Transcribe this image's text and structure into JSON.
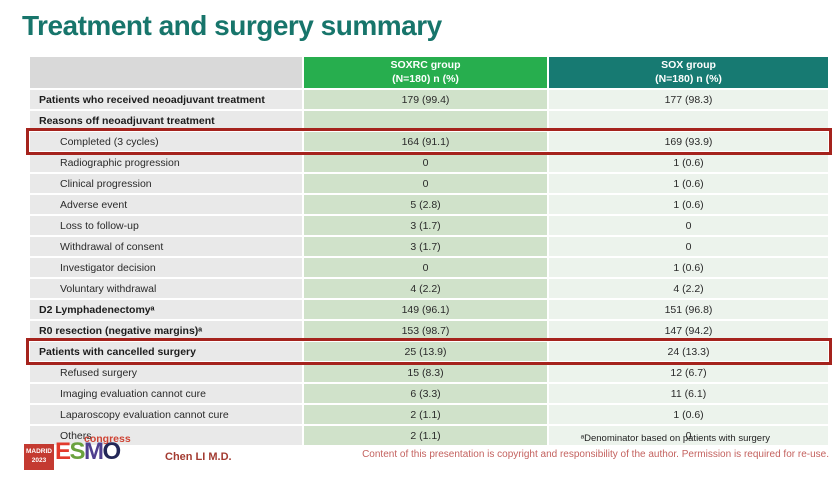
{
  "slide": {
    "title": "Treatment and surgery summary"
  },
  "colors": {
    "title_text": "#17756b",
    "header_soxrc_bg": "#27ae4e",
    "header_sox_bg": "#177a72",
    "label_column_bg": "#e9e9e9",
    "soxrc_column_bg": "#d0e2ca",
    "sox_column_bg": "#ecf3ec",
    "highlight_border": "#a5231d",
    "author_text": "#a33b31",
    "copyright_text": "#c4625f",
    "esmo_badge_bg": "#c43a31"
  },
  "table": {
    "header": {
      "soxrc_line1": "SOXRC group",
      "soxrc_line2": "(N=180)  n (%)",
      "sox_line1": "SOX group",
      "sox_line2": "(N=180)  n (%)"
    },
    "rows": [
      {
        "label": "Patients who received neoadjuvant treatment",
        "soxrc": "179 (99.4)",
        "sox": "177 (98.3)",
        "bold": true,
        "indent": false,
        "highlight": false
      },
      {
        "label": "Reasons off neoadjuvant treatment",
        "soxrc": "",
        "sox": "",
        "bold": true,
        "indent": false,
        "highlight": false
      },
      {
        "label": "Completed (3 cycles)",
        "soxrc": "164 (91.1)",
        "sox": "169 (93.9)",
        "bold": false,
        "indent": true,
        "highlight": true
      },
      {
        "label": "Radiographic progression",
        "soxrc": "0",
        "sox": "1 (0.6)",
        "bold": false,
        "indent": true,
        "highlight": false
      },
      {
        "label": "Clinical progression",
        "soxrc": "0",
        "sox": "1 (0.6)",
        "bold": false,
        "indent": true,
        "highlight": false
      },
      {
        "label": "Adverse event",
        "soxrc": "5 (2.8)",
        "sox": "1 (0.6)",
        "bold": false,
        "indent": true,
        "highlight": false
      },
      {
        "label": "Loss to follow-up",
        "soxrc": "3 (1.7)",
        "sox": "0",
        "bold": false,
        "indent": true,
        "highlight": false
      },
      {
        "label": "Withdrawal of consent",
        "soxrc": "3 (1.7)",
        "sox": "0",
        "bold": false,
        "indent": true,
        "highlight": false
      },
      {
        "label": "Investigator decision",
        "soxrc": "0",
        "sox": "1 (0.6)",
        "bold": false,
        "indent": true,
        "highlight": false
      },
      {
        "label": "Voluntary withdrawal",
        "soxrc": "4 (2.2)",
        "sox": "4 (2.2)",
        "bold": false,
        "indent": true,
        "highlight": false
      },
      {
        "label": "D2 Lymphadenectomyᵃ",
        "soxrc": "149 (96.1)",
        "sox": "151 (96.8)",
        "bold": true,
        "indent": false,
        "highlight": false
      },
      {
        "label": "R0 resection (negative margins)ᵃ",
        "soxrc": "153 (98.7)",
        "sox": "147 (94.2)",
        "bold": true,
        "indent": false,
        "highlight": false
      },
      {
        "label": "Patients with cancelled surgery",
        "soxrc": "25 (13.9)",
        "sox": "24 (13.3)",
        "bold": true,
        "indent": false,
        "highlight": true
      },
      {
        "label": "Refused surgery",
        "soxrc": "15 (8.3)",
        "sox": "12 (6.7)",
        "bold": false,
        "indent": true,
        "highlight": false
      },
      {
        "label": "Imaging evaluation cannot cure",
        "soxrc": "6 (3.3)",
        "sox": "11 (6.1)",
        "bold": false,
        "indent": true,
        "highlight": false
      },
      {
        "label": "Laparoscopy evaluation cannot cure",
        "soxrc": "2 (1.1)",
        "sox": "1 (0.6)",
        "bold": false,
        "indent": true,
        "highlight": false
      },
      {
        "label": "Others",
        "soxrc": "2 (1.1)",
        "sox": "0",
        "bold": false,
        "indent": true,
        "highlight": false
      }
    ]
  },
  "footer": {
    "logo": {
      "badge_line1": "MADRID",
      "badge_line2": "2023",
      "letters": [
        {
          "ch": "E",
          "color": "#e23a2c"
        },
        {
          "ch": "S",
          "color": "#6aa23e"
        },
        {
          "ch": "M",
          "color": "#4f3f8f"
        },
        {
          "ch": "O",
          "color": "#232757"
        }
      ],
      "congress": "congress"
    },
    "author": "Chen LI M.D.",
    "footnote": "ᵃDenominator based on patients with surgery",
    "copyright": "Content of this presentation is copyright and responsibility of the author. Permission is required for re-use."
  }
}
